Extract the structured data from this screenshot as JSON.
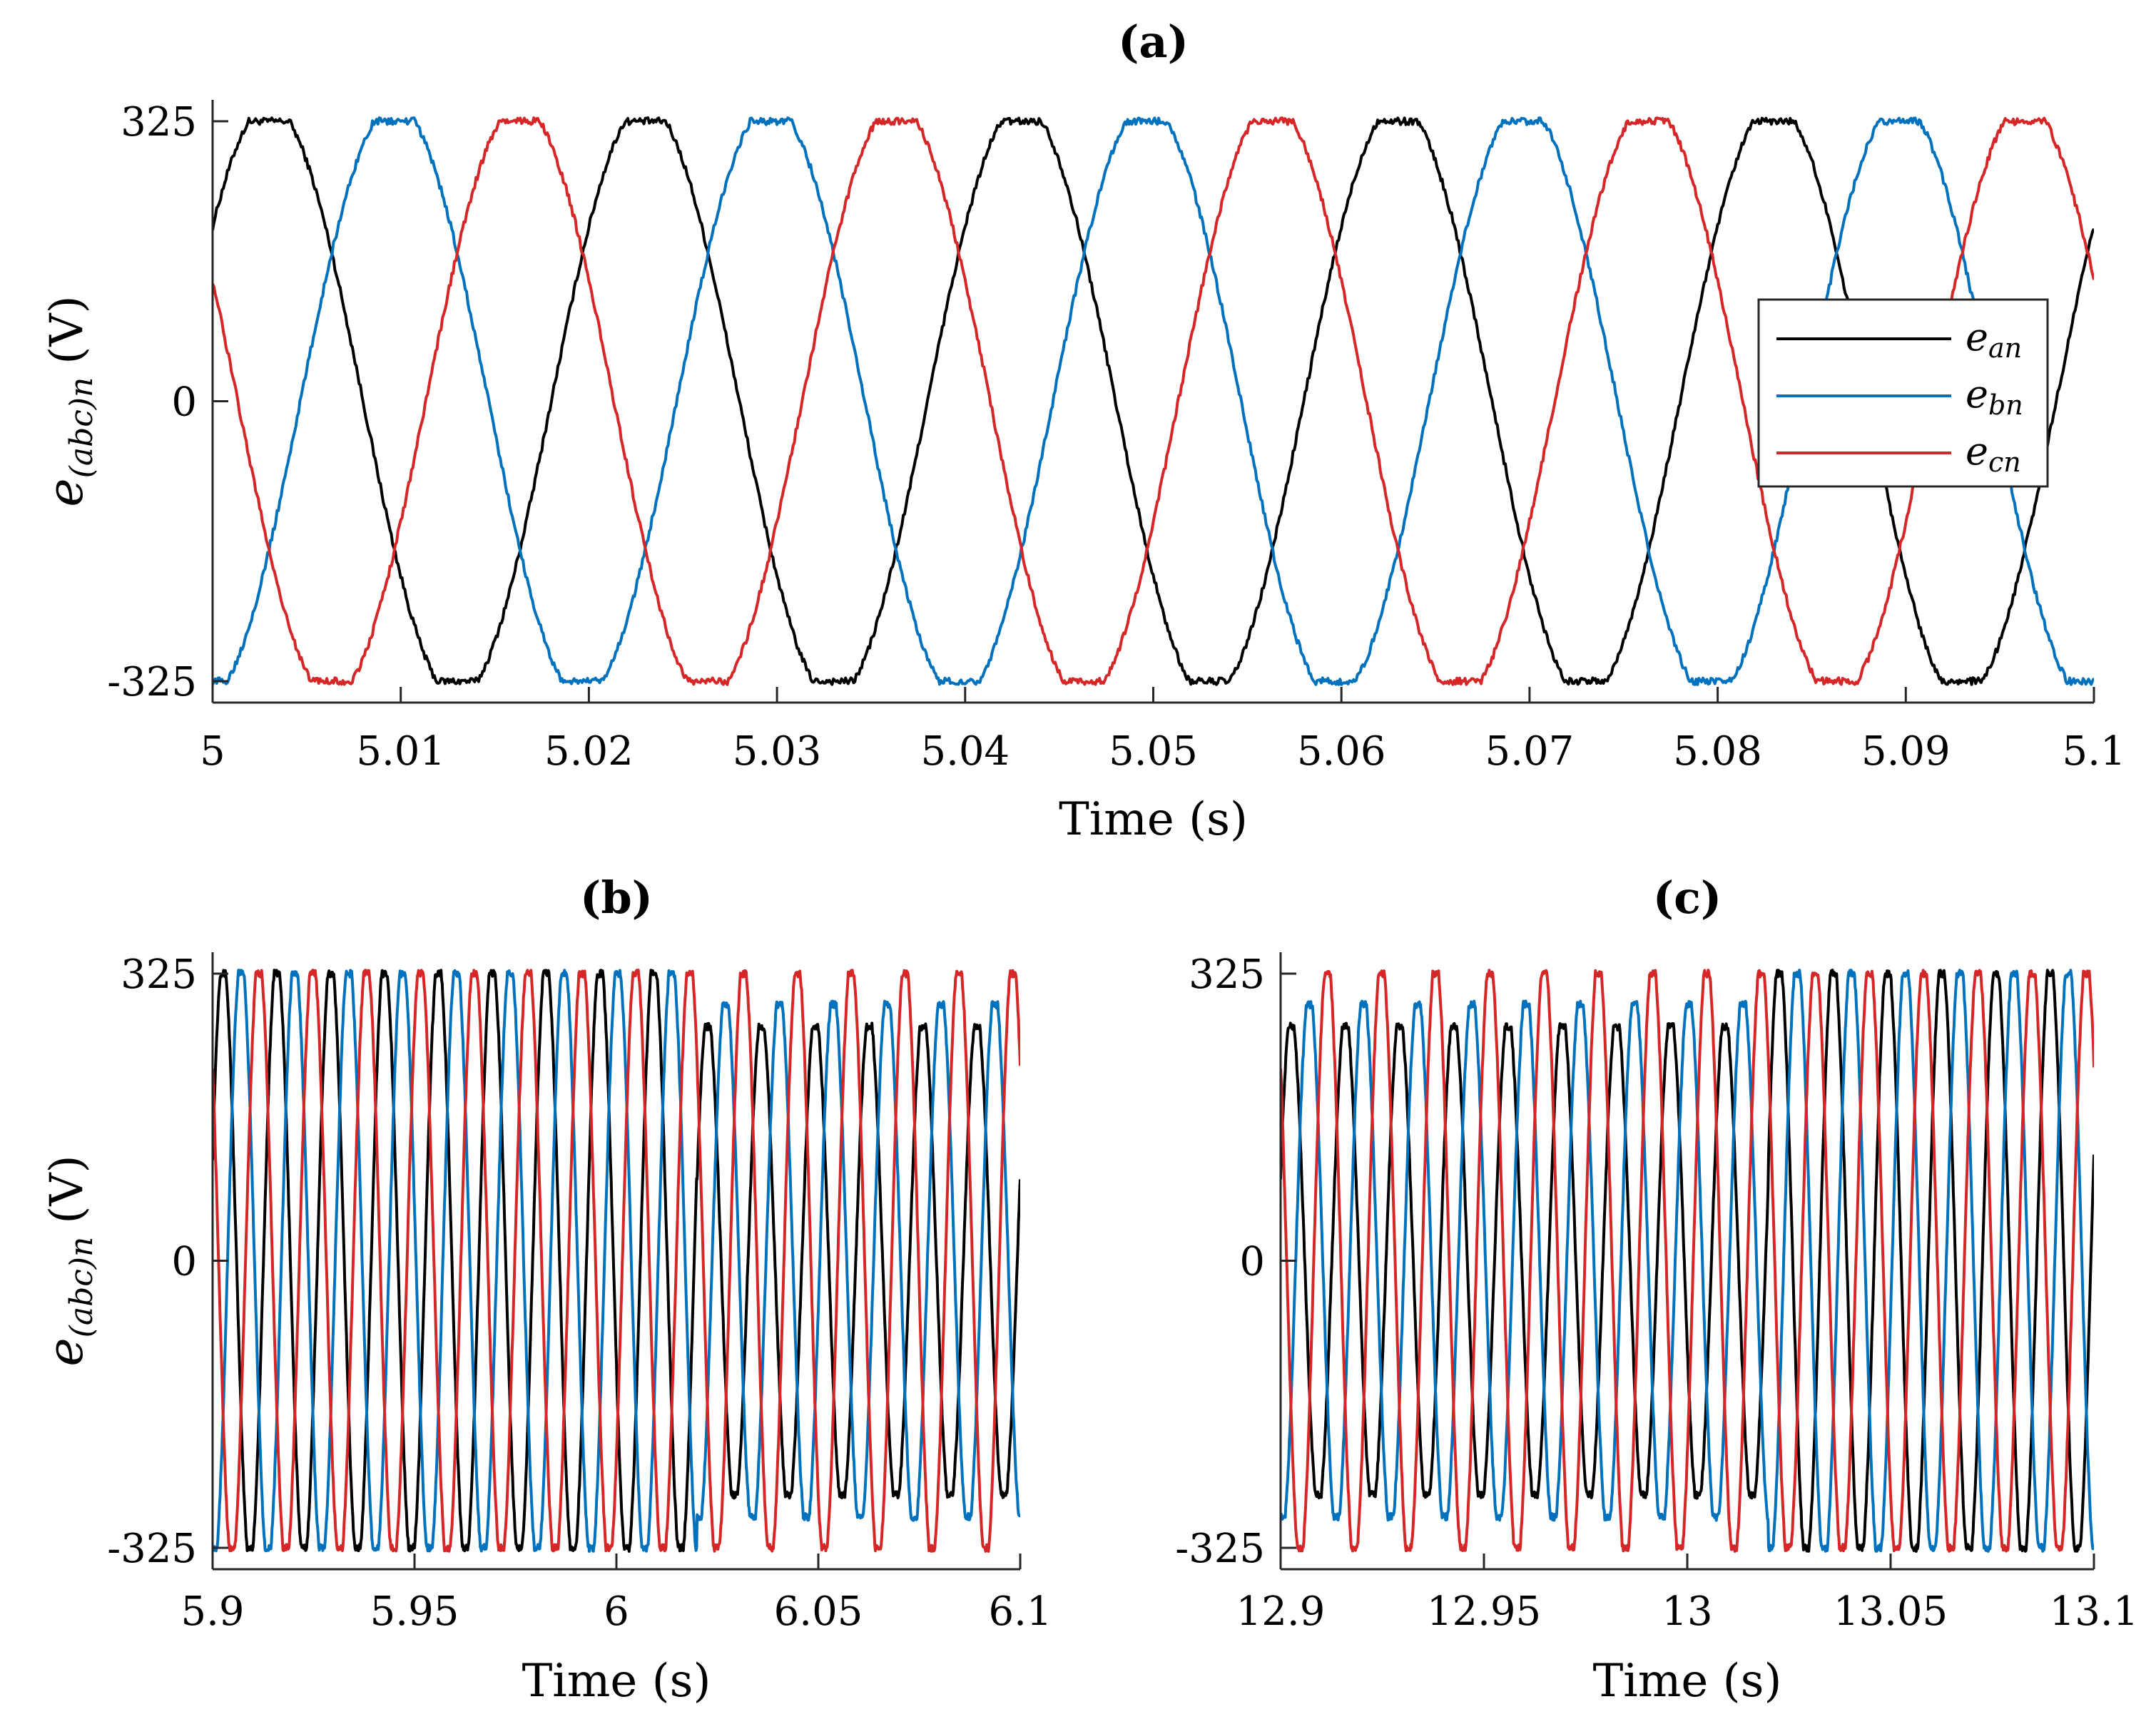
{
  "chart_data": [
    {
      "type": "line",
      "title": "(a)",
      "xlabel": "Time (s)",
      "ylabel": {
        "main": "e",
        "sub": "(abc)n",
        "unit": "(V)"
      },
      "xlim": [
        5,
        5.1
      ],
      "ylim": [
        -325,
        325
      ],
      "xticks": [
        5,
        5.01,
        5.02,
        5.03,
        5.04,
        5.05,
        5.06,
        5.07,
        5.08,
        5.09,
        5.1
      ],
      "xtick_labels": [
        "5",
        "5.01",
        "5.02",
        "5.03",
        "5.04",
        "5.05",
        "5.06",
        "5.07",
        "5.08",
        "5.09",
        "5.1"
      ],
      "yticks": [
        325,
        0,
        -325
      ],
      "ytick_labels": [
        "325",
        "0",
        "-325"
      ],
      "legend_position": "right",
      "series": [
        {
          "name": "e_an",
          "color": "#000000",
          "frequency": 50,
          "phase_deg": 36,
          "amplitude": 325
        },
        {
          "name": "e_bn",
          "color": "#0072BD",
          "frequency": 50,
          "phase_deg": -84,
          "amplitude": 325
        },
        {
          "name": "e_cn",
          "color": "#D62728",
          "frequency": 50,
          "phase_deg": 156,
          "amplitude": 325
        }
      ]
    },
    {
      "type": "line",
      "title": "(b)",
      "xlabel": "Time (s)",
      "ylabel": {
        "main": "e",
        "sub": "(abc)n",
        "unit": "(V)"
      },
      "xlim": [
        5.9,
        6.1
      ],
      "ylim": [
        -325,
        325
      ],
      "xticks": [
        5.9,
        5.95,
        6,
        6.05,
        6.1
      ],
      "xtick_labels": [
        "5.9",
        "5.95",
        "6",
        "6.05",
        "6.1"
      ],
      "yticks": [
        325,
        0,
        -325
      ],
      "ytick_labels": [
        "325",
        "0",
        "-325"
      ],
      "series": [
        {
          "name": "e_an",
          "color": "#000000",
          "frequency": 75,
          "phase_deg": 20,
          "amplitude_before": 325,
          "amplitude_after": 265,
          "change_time": 6.02
        },
        {
          "name": "e_bn",
          "color": "#0072BD",
          "frequency": 75,
          "phase_deg": -100,
          "amplitude_before": 325,
          "amplitude_after": 290,
          "change_time": 6.02
        },
        {
          "name": "e_cn",
          "color": "#D62728",
          "frequency": 75,
          "phase_deg": 140,
          "amplitude_before": 325,
          "amplitude_after": 325,
          "change_time": 6.02
        }
      ]
    },
    {
      "type": "line",
      "title": "(c)",
      "xlabel": "Time (s)",
      "ylabel": {
        "main": "",
        "sub": "",
        "unit": ""
      },
      "xlim": [
        12.9,
        13.1
      ],
      "ylim": [
        -325,
        325
      ],
      "xticks": [
        12.9,
        12.95,
        13,
        13.05,
        13.1
      ],
      "xtick_labels": [
        "12.9",
        "12.95",
        "13",
        "13.05",
        "13.1"
      ],
      "yticks": [
        325,
        0,
        -325
      ],
      "ytick_labels": [
        "325",
        "0",
        "-325"
      ],
      "series": [
        {
          "name": "e_an",
          "color": "#000000",
          "frequency": 75,
          "phase_deg": 20,
          "amplitude_before": 265,
          "amplitude_after": 325,
          "change_time": 13.02
        },
        {
          "name": "e_bn",
          "color": "#0072BD",
          "frequency": 75,
          "phase_deg": -100,
          "amplitude_before": 290,
          "amplitude_after": 325,
          "change_time": 13.02
        },
        {
          "name": "e_cn",
          "color": "#D62728",
          "frequency": 75,
          "phase_deg": 140,
          "amplitude_before": 325,
          "amplitude_after": 325,
          "change_time": 13.02
        }
      ]
    }
  ],
  "legend": {
    "entries": [
      {
        "main": "e",
        "sub": "an",
        "color": "#000000"
      },
      {
        "main": "e",
        "sub": "bn",
        "color": "#0072BD"
      },
      {
        "main": "e",
        "sub": "cn",
        "color": "#D62728"
      }
    ]
  }
}
